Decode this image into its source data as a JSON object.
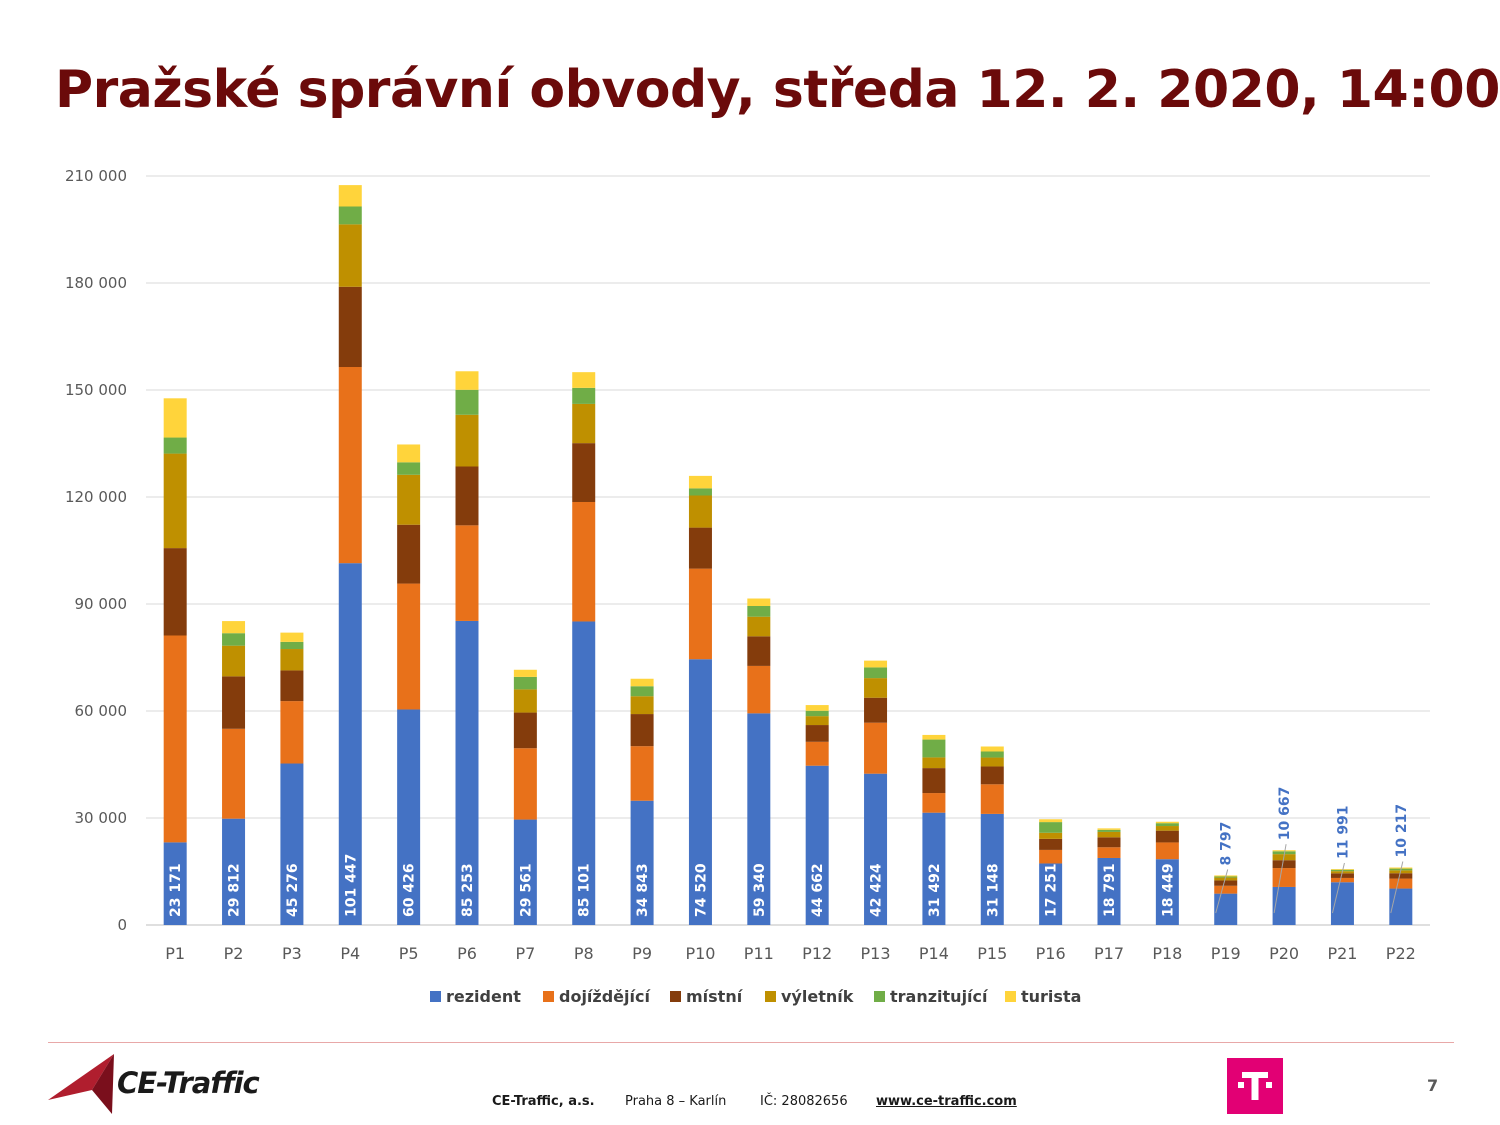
{
  "title": "Pražské správní obvody, středa 12. 2. 2020, 14:00",
  "chart_data": {
    "type": "bar",
    "stacked": true,
    "categories": [
      "P1",
      "P2",
      "P3",
      "P4",
      "P5",
      "P6",
      "P7",
      "P8",
      "P9",
      "P10",
      "P11",
      "P12",
      "P13",
      "P14",
      "P15",
      "P16",
      "P17",
      "P18",
      "P19",
      "P20",
      "P21",
      "P22"
    ],
    "y_ticks": [
      "0",
      "30 000",
      "60 000",
      "90 000",
      "120 000",
      "150 000",
      "180 000",
      "210 000"
    ],
    "ylim": [
      0,
      210000
    ],
    "grid": true,
    "legend_position": "bottom",
    "series": [
      {
        "name": "rezident",
        "color": "#4472c4",
        "values": [
          23171,
          29812,
          45276,
          101447,
          60426,
          85253,
          29561,
          85101,
          34843,
          74520,
          59340,
          44662,
          42424,
          31492,
          31148,
          17251,
          18791,
          18449,
          8797,
          10667,
          11991,
          10217
        ]
      },
      {
        "name": "dojíždějící",
        "color": "#e8711a",
        "values": [
          58000,
          25200,
          17500,
          55000,
          35300,
          26800,
          20000,
          33500,
          15300,
          25400,
          13300,
          6700,
          14300,
          5500,
          8300,
          3800,
          3000,
          4700,
          2200,
          5300,
          1200,
          2800
        ]
      },
      {
        "name": "místní",
        "color": "#843c0c",
        "values": [
          24500,
          14700,
          8600,
          22500,
          16500,
          16500,
          10000,
          16500,
          9000,
          11500,
          8300,
          4700,
          7000,
          7000,
          5000,
          3100,
          2800,
          3300,
          1500,
          2200,
          1300,
          1500
        ]
      },
      {
        "name": "výletník",
        "color": "#bf9000",
        "values": [
          26500,
          8600,
          6000,
          17500,
          14000,
          14500,
          6500,
          11000,
          5000,
          9000,
          5500,
          2500,
          5500,
          3000,
          2500,
          1700,
          1500,
          1300,
          800,
          1700,
          600,
          800
        ]
      },
      {
        "name": "tranzitující",
        "color": "#70ad47",
        "values": [
          4500,
          3500,
          2000,
          5000,
          3500,
          7000,
          3500,
          4500,
          2800,
          2000,
          3000,
          1500,
          3000,
          5000,
          1700,
          3000,
          600,
          800,
          300,
          800,
          400,
          500
        ]
      },
      {
        "name": "turista",
        "color": "#ffd43b",
        "values": [
          11000,
          3400,
          2600,
          6000,
          5000,
          5200,
          2000,
          4400,
          2100,
          3500,
          2100,
          1600,
          1900,
          1300,
          1400,
          800,
          400,
          400,
          300,
          300,
          200,
          300
        ]
      }
    ],
    "data_labels": [
      "23 171",
      "29 812",
      "45 276",
      "101 447",
      "60 426",
      "85 253",
      "29 561",
      "85 101",
      "34 843",
      "74 520",
      "59 340",
      "44 662",
      "42 424",
      "31 492",
      "31 148",
      "17 251",
      "18 791",
      "18 449",
      "8 797",
      "10 667",
      "11 991",
      "10 217"
    ],
    "data_label_series": "rezident"
  },
  "footer": {
    "logo_text": "CE-Traffic",
    "company": "CE-Traffic, a.s.",
    "address": "Praha 8 – Karlín",
    "ic": "IČ: 28082656",
    "web": "www.ce-traffic.com",
    "partner_logo": "T",
    "page_number": "7"
  }
}
